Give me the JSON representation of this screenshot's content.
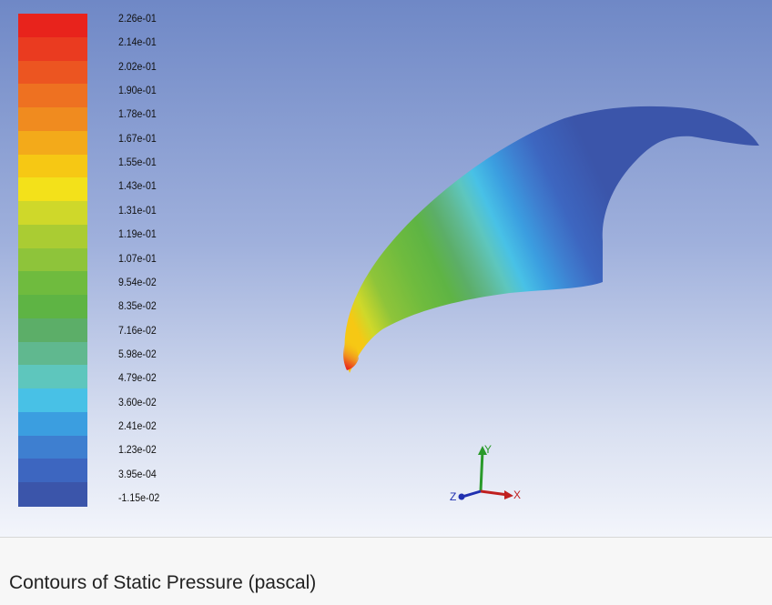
{
  "caption": "Contours of Static Pressure (pascal)",
  "colorbar": {
    "labels": [
      "2.26e-01",
      "2.14e-01",
      "2.02e-01",
      "1.90e-01",
      "1.78e-01",
      "1.67e-01",
      "1.55e-01",
      "1.43e-01",
      "1.31e-01",
      "1.19e-01",
      "1.07e-01",
      "9.54e-02",
      "8.35e-02",
      "7.16e-02",
      "5.98e-02",
      "4.79e-02",
      "3.60e-02",
      "2.41e-02",
      "1.23e-02",
      "3.95e-04",
      "-1.15e-02"
    ],
    "colors": [
      "#e8231c",
      "#ea3b20",
      "#ec5521",
      "#ee7121",
      "#f08b1f",
      "#f3aa1a",
      "#f6c814",
      "#f3e11a",
      "#cfd82a",
      "#aacc33",
      "#8ec43a",
      "#6fbb3e",
      "#5eb444",
      "#5cae68",
      "#60b88f",
      "#5ec6bd",
      "#48c1e6",
      "#3b9ee0",
      "#3e7fd0",
      "#3d66c0",
      "#3b55aa"
    ]
  },
  "axes_triad": {
    "x_label": "X",
    "y_label": "Y",
    "z_label": "Z",
    "x_color": "#c02020",
    "y_color": "#2a9a2a",
    "z_color": "#2030b0"
  }
}
